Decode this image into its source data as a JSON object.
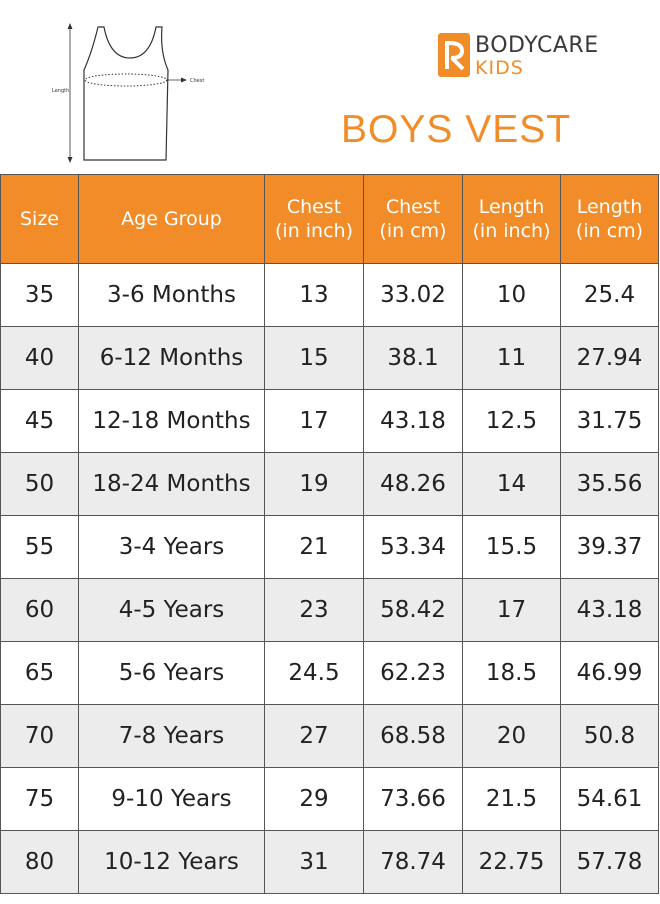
{
  "brand": {
    "name_line1": "BODYCARE",
    "name_line2": "KIDS",
    "accent_color": "#f28c28"
  },
  "diagram": {
    "length_label": "Length",
    "chest_label": "Chest"
  },
  "title": "BOYS VEST",
  "table": {
    "headers": [
      [
        "Size"
      ],
      [
        "Age Group"
      ],
      [
        "Chest",
        "(in inch)"
      ],
      [
        "Chest",
        "(in cm)"
      ],
      [
        "Length",
        "(in inch)"
      ],
      [
        "Length",
        "(in cm)"
      ]
    ],
    "rows": [
      [
        "35",
        "3-6 Months",
        "13",
        "33.02",
        "10",
        "25.4"
      ],
      [
        "40",
        "6-12 Months",
        "15",
        "38.1",
        "11",
        "27.94"
      ],
      [
        "45",
        "12-18 Months",
        "17",
        "43.18",
        "12.5",
        "31.75"
      ],
      [
        "50",
        "18-24 Months",
        "19",
        "48.26",
        "14",
        "35.56"
      ],
      [
        "55",
        "3-4 Years",
        "21",
        "53.34",
        "15.5",
        "39.37"
      ],
      [
        "60",
        "4-5 Years",
        "23",
        "58.42",
        "17",
        "43.18"
      ],
      [
        "65",
        "5-6 Years",
        "24.5",
        "62.23",
        "18.5",
        "46.99"
      ],
      [
        "70",
        "7-8 Years",
        "27",
        "68.58",
        "20",
        "50.8"
      ],
      [
        "75",
        "9-10 Years",
        "29",
        "73.66",
        "21.5",
        "54.61"
      ],
      [
        "80",
        "10-12 Years",
        "31",
        "78.74",
        "22.75",
        "57.78"
      ]
    ]
  }
}
